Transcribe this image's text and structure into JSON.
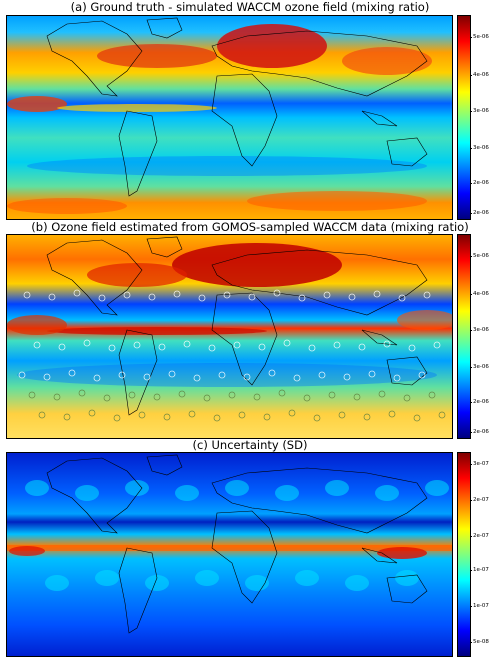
{
  "panels": [
    {
      "title": "(a) Ground truth - simulated WACCM ozone field (mixing ratio)",
      "colorbar_ticks": [
        "5e-06",
        "4e-06",
        "3e-06",
        "3e-06",
        "2e-06",
        "2e-06"
      ]
    },
    {
      "title": "(b) Ozone field estimated from GOMOS-sampled WACCM data (mixing ratio)",
      "colorbar_ticks": [
        "5e-06",
        "4e-06",
        "3e-06",
        "3e-06",
        "2e-06",
        "2e-06"
      ]
    },
    {
      "title": "(c) Uncertainty (SD)",
      "colorbar_ticks": [
        "3e-07",
        "2e-07",
        "2e-07",
        "1e-07",
        "1e-07",
        "5e-08"
      ]
    }
  ],
  "colormap": [
    "#00007f",
    "#0000ff",
    "#007fff",
    "#00ffff",
    "#7fff7f",
    "#ffff00",
    "#ff7f00",
    "#ff0000",
    "#7f0000"
  ],
  "coastline_color": "#000000"
}
